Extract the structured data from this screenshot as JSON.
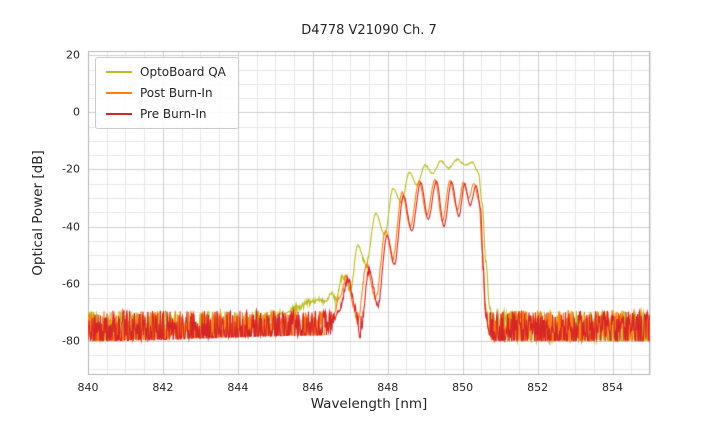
{
  "chart_data": {
    "type": "line",
    "title": "D4778 V21090 Ch. 7",
    "xlabel": "Wavelength [nm]",
    "ylabel": "Optical Power [dB]",
    "xlim": [
      840,
      855
    ],
    "ylim": [
      -92,
      21.5
    ],
    "xticks": [
      840,
      842,
      844,
      846,
      848,
      850,
      852,
      854
    ],
    "yticks": [
      20,
      0,
      -20,
      -40,
      -60,
      -80
    ],
    "x_minor_step": 0.5,
    "y_minor_step": 5,
    "grid": true,
    "legend_position": "upper left",
    "noise_floor": {
      "top_db": -69.5,
      "spread_db": 15,
      "spike_extra_db": 7
    },
    "series": [
      {
        "name": "OptoBoard QA",
        "color": "#bcbd22",
        "envelope": [
          [
            840,
            -80
          ],
          [
            844.4,
            -77
          ],
          [
            844.8,
            -73
          ],
          [
            845.2,
            -70.5
          ],
          [
            845.6,
            -68.5
          ],
          [
            845.9,
            -66.5
          ],
          [
            846.15,
            -65.5
          ],
          [
            846.3,
            -66.5
          ],
          [
            846.5,
            -63
          ],
          [
            846.62,
            -65.5
          ],
          [
            846.8,
            -57.5
          ],
          [
            847.0,
            -62.5
          ],
          [
            847.2,
            -46.5
          ],
          [
            847.42,
            -53.5
          ],
          [
            847.68,
            -35.5
          ],
          [
            847.92,
            -43
          ],
          [
            848.14,
            -26.5
          ],
          [
            848.36,
            -31.5
          ],
          [
            848.58,
            -21
          ],
          [
            848.78,
            -25.5
          ],
          [
            849.0,
            -18.5
          ],
          [
            849.2,
            -21.5
          ],
          [
            849.42,
            -17
          ],
          [
            849.62,
            -19.5
          ],
          [
            849.86,
            -16.5
          ],
          [
            850.06,
            -18.5
          ],
          [
            850.26,
            -17.5
          ],
          [
            850.42,
            -21
          ],
          [
            850.52,
            -32
          ],
          [
            850.62,
            -52
          ],
          [
            850.72,
            -68
          ],
          [
            850.85,
            -77
          ],
          [
            851.0,
            -80
          ],
          [
            855,
            -80
          ]
        ]
      },
      {
        "name": "Post Burn-In",
        "color": "#ff7f0e",
        "envelope": [
          [
            840,
            -80
          ],
          [
            846.3,
            -78
          ],
          [
            846.55,
            -71
          ],
          [
            846.72,
            -64
          ],
          [
            846.9,
            -57.5
          ],
          [
            847.08,
            -67
          ],
          [
            847.18,
            -74
          ],
          [
            847.44,
            -53.5
          ],
          [
            847.68,
            -65
          ],
          [
            847.94,
            -41.5
          ],
          [
            848.14,
            -51
          ],
          [
            848.38,
            -28
          ],
          [
            848.6,
            -40
          ],
          [
            848.84,
            -24
          ],
          [
            849.04,
            -36
          ],
          [
            849.26,
            -23.5
          ],
          [
            849.46,
            -38
          ],
          [
            849.66,
            -24
          ],
          [
            849.86,
            -34
          ],
          [
            850.02,
            -24.5
          ],
          [
            850.16,
            -30
          ],
          [
            850.3,
            -25
          ],
          [
            850.44,
            -31
          ],
          [
            850.52,
            -48
          ],
          [
            850.6,
            -68
          ],
          [
            850.7,
            -77
          ],
          [
            850.8,
            -80
          ],
          [
            855,
            -80
          ]
        ]
      },
      {
        "name": "Pre Burn-In",
        "color": "#d62728",
        "envelope": [
          [
            840,
            -80
          ],
          [
            846.45,
            -78
          ],
          [
            846.68,
            -70
          ],
          [
            846.95,
            -58.5
          ],
          [
            847.14,
            -69
          ],
          [
            847.26,
            -79
          ],
          [
            847.5,
            -55.5
          ],
          [
            847.74,
            -67.5
          ],
          [
            847.98,
            -43
          ],
          [
            848.18,
            -53
          ],
          [
            848.42,
            -29
          ],
          [
            848.64,
            -41.5
          ],
          [
            848.88,
            -24.5
          ],
          [
            849.08,
            -37.5
          ],
          [
            849.3,
            -24
          ],
          [
            849.5,
            -40
          ],
          [
            849.7,
            -24.5
          ],
          [
            849.9,
            -36.5
          ],
          [
            850.05,
            -25
          ],
          [
            850.2,
            -32.5
          ],
          [
            850.36,
            -25.5
          ],
          [
            850.48,
            -34
          ],
          [
            850.55,
            -55
          ],
          [
            850.62,
            -72
          ],
          [
            850.72,
            -78
          ],
          [
            850.8,
            -80
          ],
          [
            855,
            -80
          ]
        ]
      }
    ]
  }
}
